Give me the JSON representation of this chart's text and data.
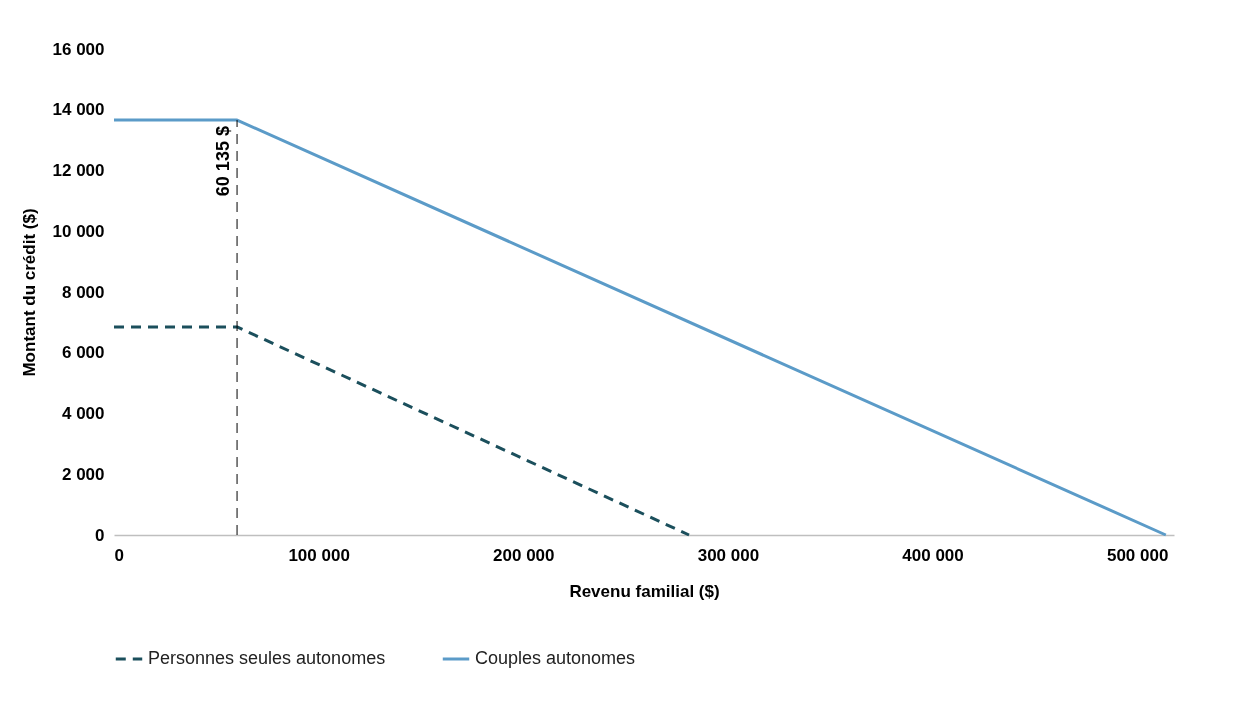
{
  "chart_data": {
    "type": "line",
    "xlabel": "Revenu familial ($)",
    "ylabel": "Montant du crédit ($)",
    "xlim": [
      0,
      518000
    ],
    "ylim": [
      0,
      16000
    ],
    "xticks": [
      {
        "value": 0,
        "label": "0"
      },
      {
        "value": 100000,
        "label": "100 000"
      },
      {
        "value": 200000,
        "label": "200 000"
      },
      {
        "value": 300000,
        "label": "300 000"
      },
      {
        "value": 400000,
        "label": "400 000"
      },
      {
        "value": 500000,
        "label": "500 000"
      }
    ],
    "yticks": [
      {
        "value": 0,
        "label": "0"
      },
      {
        "value": 2000,
        "label": "2 000"
      },
      {
        "value": 4000,
        "label": "4 000"
      },
      {
        "value": 6000,
        "label": "6 000"
      },
      {
        "value": 8000,
        "label": "8 000"
      },
      {
        "value": 10000,
        "label": "10 000"
      },
      {
        "value": 12000,
        "label": "12 000"
      },
      {
        "value": 14000,
        "label": "14 000"
      },
      {
        "value": 16000,
        "label": "16 000"
      }
    ],
    "series": [
      {
        "name": "Personnes seules autonomes",
        "color": "#1b4f5c",
        "line_style": "dashed",
        "x": [
          0,
          60135,
          281000
        ],
        "values": [
          6850,
          6850,
          0
        ]
      },
      {
        "name": "Couples autonomes",
        "color": "#5b9bc8",
        "line_style": "solid",
        "x": [
          0,
          60135,
          514000
        ],
        "values": [
          13660,
          13660,
          0
        ]
      }
    ],
    "ref_lines": [
      {
        "axis": "x",
        "value": 60135,
        "label": "60 135 $",
        "color": "#000000",
        "line_style": "dashed"
      }
    ],
    "grid": false,
    "legend": "bottom"
  }
}
